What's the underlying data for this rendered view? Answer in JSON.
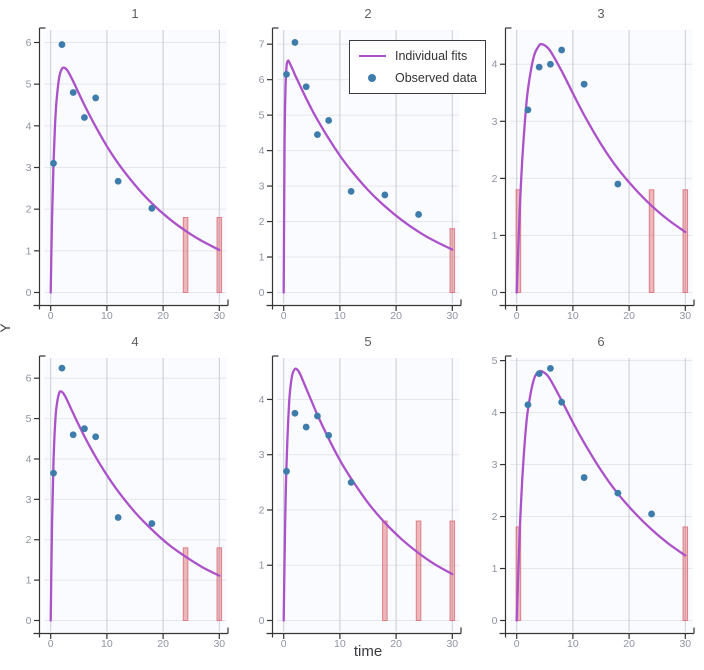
{
  "figure": {
    "xlabel": "time",
    "ylabel": "Y",
    "legend": {
      "position": "top-right-of-subplot-2",
      "items": [
        {
          "label": "Individual fits",
          "type": "line",
          "color": "#ab51c9"
        },
        {
          "label": "Observed data",
          "type": "point",
          "color": "#3e7cac"
        }
      ]
    },
    "colors": {
      "plot_bg": "#fafbfe",
      "grid_h": "#e6e7ee",
      "grid_v": "#c9cbd6",
      "axis": "#333338",
      "tick_label": "#8f94a0",
      "title": "#5f5f63",
      "fit": "#ab51c9",
      "point": "#3e7cac",
      "bar": "#d9636d"
    }
  },
  "chart_data": [
    {
      "type": "line+scatter",
      "title": "1",
      "xlim": [
        -1.2,
        31.3
      ],
      "ylim": [
        0,
        6.3
      ],
      "xticks": [
        0,
        10,
        20,
        30
      ],
      "yticks": [
        0,
        1,
        2,
        3,
        4,
        5,
        6
      ],
      "fit": {
        "name": "Individual fits",
        "x": [
          0,
          0.25,
          0.5,
          0.75,
          1,
          1.5,
          2,
          2.5,
          3,
          4,
          5,
          6,
          8,
          10,
          12,
          15,
          18,
          21,
          24,
          27,
          30
        ],
        "y": [
          0,
          1.83,
          3.09,
          3.95,
          4.53,
          5.15,
          5.37,
          5.39,
          5.32,
          5.07,
          4.78,
          4.5,
          3.98,
          3.51,
          3.1,
          2.58,
          2.14,
          1.78,
          1.48,
          1.23,
          1.02
        ]
      },
      "observed": {
        "name": "Observed data",
        "x": [
          0.5,
          2,
          4,
          6,
          8,
          12,
          18
        ],
        "y": [
          3.1,
          5.95,
          4.8,
          4.2,
          4.67,
          2.67,
          2.02
        ]
      },
      "dose_bars": {
        "x": [
          24,
          30
        ],
        "height": 1.8
      }
    },
    {
      "type": "line+scatter",
      "title": "2",
      "xlim": [
        -1.2,
        31.3
      ],
      "ylim": [
        0,
        7.4
      ],
      "xticks": [
        0,
        10,
        20,
        30
      ],
      "yticks": [
        0,
        1,
        2,
        3,
        4,
        5,
        6,
        7
      ],
      "fit": {
        "name": "Individual fits",
        "x": [
          0,
          0.15,
          0.3,
          0.5,
          0.75,
          1,
          1.5,
          2,
          2.5,
          3,
          4,
          5,
          6,
          8,
          10,
          12,
          15,
          18,
          21,
          24,
          27,
          30
        ],
        "y": [
          0,
          4.03,
          5.64,
          6.36,
          6.53,
          6.49,
          6.32,
          6.14,
          5.97,
          5.8,
          5.47,
          5.16,
          4.87,
          4.34,
          3.86,
          3.44,
          2.89,
          2.43,
          2.04,
          1.71,
          1.44,
          1.21
        ]
      },
      "observed": {
        "name": "Observed data",
        "x": [
          0.5,
          2,
          4,
          6,
          8,
          12,
          18,
          24
        ],
        "y": [
          6.15,
          7.05,
          5.8,
          4.45,
          4.85,
          2.85,
          2.75,
          2.2
        ]
      },
      "dose_bars": {
        "x": [
          30
        ],
        "height": 1.8
      }
    },
    {
      "type": "line+scatter",
      "title": "3",
      "xlim": [
        -1.2,
        31.3
      ],
      "ylim": [
        0,
        4.6
      ],
      "xticks": [
        0,
        10,
        20,
        30
      ],
      "yticks": [
        0,
        1,
        2,
        3,
        4
      ],
      "fit": {
        "name": "Individual fits",
        "x": [
          0,
          0.5,
          1,
          1.5,
          2,
          3,
          4,
          4.5,
          5,
          6,
          8,
          10,
          12,
          15,
          18,
          21,
          24,
          27,
          30
        ],
        "y": [
          0,
          1.35,
          2.34,
          3.04,
          3.55,
          4.12,
          4.33,
          4.35,
          4.33,
          4.23,
          3.88,
          3.49,
          3.11,
          2.6,
          2.17,
          1.82,
          1.52,
          1.27,
          1.06
        ]
      },
      "observed": {
        "name": "Observed data",
        "x": [
          2,
          4,
          6,
          8,
          12,
          18
        ],
        "y": [
          3.2,
          3.95,
          4.0,
          4.25,
          3.65,
          1.9
        ]
      },
      "dose_bars": {
        "x": [
          0.3,
          24,
          30
        ],
        "height": 1.8
      }
    },
    {
      "type": "line+scatter",
      "title": "4",
      "xlim": [
        -1.2,
        31.3
      ],
      "ylim": [
        0,
        6.5
      ],
      "xticks": [
        0,
        10,
        20,
        30
      ],
      "yticks": [
        0,
        1,
        2,
        3,
        4,
        5,
        6
      ],
      "fit": {
        "name": "Individual fits",
        "x": [
          0,
          0.25,
          0.5,
          0.75,
          1,
          1.5,
          2,
          2.5,
          3,
          4,
          5,
          6,
          8,
          10,
          12,
          15,
          18,
          21,
          24,
          27,
          30
        ],
        "y": [
          0,
          2.46,
          3.92,
          4.77,
          5.25,
          5.63,
          5.66,
          5.57,
          5.43,
          5.13,
          4.84,
          4.56,
          4.05,
          3.6,
          3.2,
          2.68,
          2.25,
          1.88,
          1.58,
          1.32,
          1.11
        ]
      },
      "observed": {
        "name": "Observed data",
        "x": [
          0.5,
          2,
          4,
          6,
          8,
          12,
          18
        ],
        "y": [
          3.65,
          6.25,
          4.6,
          4.75,
          4.55,
          2.55,
          2.4
        ]
      },
      "dose_bars": {
        "x": [
          24,
          30
        ],
        "height": 1.8
      }
    },
    {
      "type": "line+scatter",
      "title": "5",
      "xlim": [
        -1.2,
        31.3
      ],
      "ylim": [
        0,
        4.75
      ],
      "xticks": [
        0,
        10,
        20,
        30
      ],
      "yticks": [
        0,
        1,
        2,
        3,
        4
      ],
      "fit": {
        "name": "Individual fits",
        "x": [
          0,
          0.25,
          0.5,
          1,
          1.5,
          2,
          2.5,
          3,
          4,
          5,
          6,
          8,
          10,
          12,
          15,
          18,
          21,
          24,
          27,
          30
        ],
        "y": [
          0,
          1.7,
          2.81,
          3.99,
          4.43,
          4.55,
          4.53,
          4.44,
          4.2,
          3.96,
          3.72,
          3.29,
          2.9,
          2.57,
          2.13,
          1.77,
          1.47,
          1.22,
          1.01,
          0.84
        ]
      },
      "observed": {
        "name": "Observed data",
        "x": [
          0.5,
          2,
          4,
          6,
          8,
          12
        ],
        "y": [
          2.7,
          3.75,
          3.5,
          3.7,
          3.35,
          2.5
        ]
      },
      "dose_bars": {
        "x": [
          18,
          24,
          30
        ],
        "height": 1.8
      }
    },
    {
      "type": "line+scatter",
      "title": "6",
      "xlim": [
        -1.2,
        31.3
      ],
      "ylim": [
        0,
        5.05
      ],
      "xticks": [
        0,
        10,
        20,
        30
      ],
      "yticks": [
        0,
        1,
        2,
        3,
        4,
        5
      ],
      "fit": {
        "name": "Individual fits",
        "x": [
          0,
          0.5,
          1,
          1.5,
          2,
          3,
          4,
          5,
          6,
          8,
          10,
          12,
          15,
          18,
          21,
          24,
          27,
          30
        ],
        "y": [
          0,
          1.6,
          2.73,
          3.52,
          4.05,
          4.62,
          4.79,
          4.76,
          4.63,
          4.23,
          3.81,
          3.42,
          2.89,
          2.44,
          2.07,
          1.75,
          1.48,
          1.25
        ]
      },
      "observed": {
        "name": "Observed data",
        "x": [
          2,
          4,
          6,
          8,
          12,
          18,
          24
        ],
        "y": [
          4.15,
          4.75,
          4.85,
          4.2,
          2.75,
          2.45,
          2.05
        ]
      },
      "dose_bars": {
        "x": [
          0.3,
          30
        ],
        "height": 1.8
      }
    }
  ]
}
